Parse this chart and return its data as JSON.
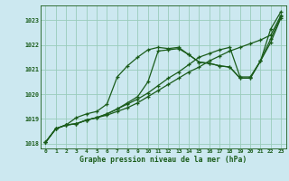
{
  "title": "Graphe pression niveau de la mer (hPa)",
  "bg_color": "#cce8f0",
  "grid_color": "#99ccbb",
  "line_color": "#1a5c1a",
  "marker": "+",
  "xlim": [
    -0.5,
    23.5
  ],
  "ylim": [
    1017.8,
    1023.6
  ],
  "yticks": [
    1018,
    1019,
    1020,
    1021,
    1022,
    1023
  ],
  "xticks": [
    0,
    1,
    2,
    3,
    4,
    5,
    6,
    7,
    8,
    9,
    10,
    11,
    12,
    13,
    14,
    15,
    16,
    17,
    18,
    19,
    20,
    21,
    22,
    23
  ],
  "series": [
    [
      1018.05,
      1018.6,
      1018.75,
      1018.8,
      1018.95,
      1019.05,
      1019.15,
      1019.3,
      1019.45,
      1019.65,
      1019.9,
      1020.15,
      1020.4,
      1020.65,
      1020.9,
      1021.1,
      1021.35,
      1021.55,
      1021.75,
      1021.9,
      1022.05,
      1022.2,
      1022.4,
      1023.2
    ],
    [
      1018.05,
      1018.6,
      1018.75,
      1018.8,
      1018.95,
      1019.05,
      1019.2,
      1019.4,
      1019.65,
      1019.9,
      1020.5,
      1021.75,
      1021.8,
      1021.85,
      1021.6,
      1021.3,
      1021.25,
      1021.15,
      1021.1,
      1020.65,
      1020.65,
      1021.35,
      1022.25,
      1023.15
    ],
    [
      1018.05,
      1018.6,
      1018.75,
      1019.05,
      1019.2,
      1019.3,
      1019.6,
      1020.7,
      1021.15,
      1021.5,
      1021.8,
      1021.9,
      1021.85,
      1021.9,
      1021.6,
      1021.3,
      1021.25,
      1021.15,
      1021.1,
      1020.65,
      1020.65,
      1021.35,
      1022.1,
      1023.1
    ],
    [
      1018.05,
      1018.6,
      1018.75,
      1018.8,
      1018.95,
      1019.05,
      1019.2,
      1019.4,
      1019.6,
      1019.8,
      1020.05,
      1020.35,
      1020.65,
      1020.9,
      1021.2,
      1021.5,
      1021.65,
      1021.8,
      1021.9,
      1020.7,
      1020.7,
      1021.35,
      1022.65,
      1023.35
    ]
  ]
}
